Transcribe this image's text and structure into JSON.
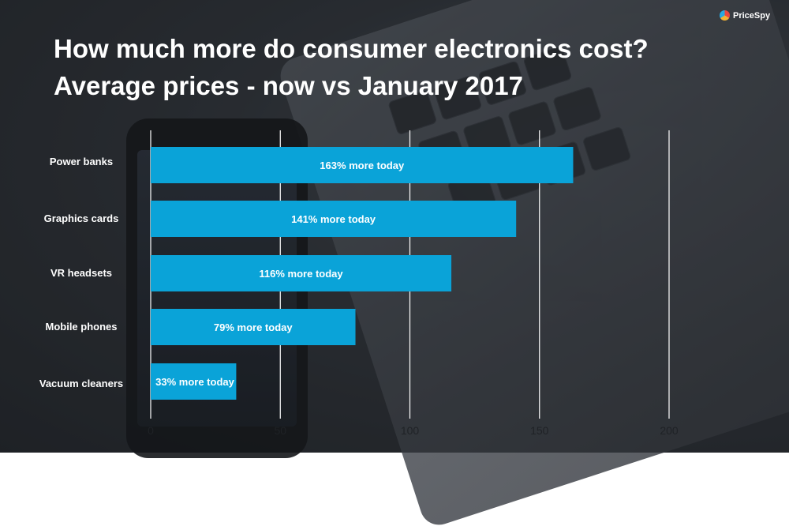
{
  "brand": {
    "name": "PriceSpy"
  },
  "title_line1": "How much more do consumer electronics cost?",
  "title_line2": "Average prices - now vs January 2017",
  "chart_data": {
    "type": "bar",
    "orientation": "horizontal",
    "categories": [
      "Power banks",
      "Graphics cards",
      "VR headsets",
      "Mobile phones",
      "Vacuum cleaners"
    ],
    "values": [
      163,
      141,
      116,
      79,
      33
    ],
    "data_labels": [
      "163% more today",
      "141% more today",
      "116% more today",
      "79% more today",
      "33% more today"
    ],
    "x_ticks": [
      0,
      50,
      100,
      150,
      200
    ],
    "xlim": [
      0,
      200
    ],
    "grid": true,
    "bar_color": "#0aa3d8"
  }
}
